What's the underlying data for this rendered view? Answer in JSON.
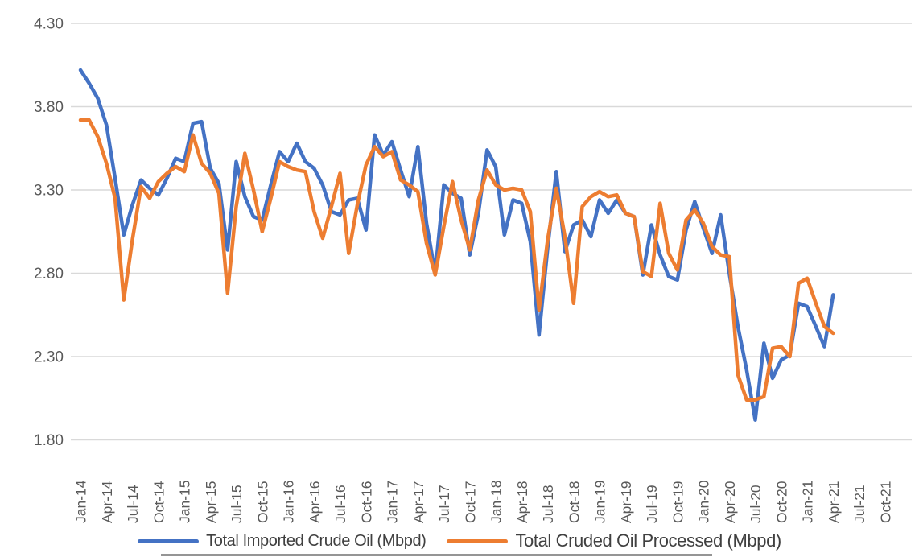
{
  "chart": {
    "y_axis": {
      "labels": [
        "4.30",
        "3.80",
        "3.30",
        "2.80",
        "2.30",
        "1.80"
      ]
    },
    "x_axis": {
      "tick_labels": [
        "Jan-14",
        "Apr-14",
        "Jul-14",
        "Oct-14",
        "Jan-15",
        "Apr-15",
        "Jul-15",
        "Oct-15",
        "Jan-16",
        "Apr-16",
        "Jul-16",
        "Oct-16",
        "Jan-17",
        "Apr-17",
        "Jul-17",
        "Oct-17",
        "Jan-18",
        "Apr-18",
        "Jul-18",
        "Oct-18",
        "Jan-19",
        "Apr-19",
        "Jul-19",
        "Oct-19",
        "Jan-20",
        "Apr-20",
        "Jul-20",
        "Oct-20",
        "Jan-21",
        "Apr-21",
        "Jul-21",
        "Oct-21"
      ]
    },
    "legend": [
      {
        "label": "Total Imported Crude Oil (Mbpd)",
        "color": "#4472C4"
      },
      {
        "label": "Total Cruded Oil Processed (Mbpd)",
        "color": "#ED7D31"
      }
    ]
  },
  "chart_data": {
    "type": "line",
    "x_interval": "monthly",
    "x_start": "Jan-14",
    "x_end": "Apr-21",
    "x_axis_span_months": 96,
    "ylim": [
      1.8,
      4.3
    ],
    "y_tick_step": 0.5,
    "grid": "horizontal",
    "legend_position": "bottom",
    "series": [
      {
        "name": "Total Imported Crude Oil (Mbpd)",
        "color": "#4472C4",
        "values": [
          4.02,
          3.94,
          3.85,
          3.69,
          3.37,
          3.03,
          3.21,
          3.36,
          3.31,
          3.27,
          3.37,
          3.49,
          3.47,
          3.7,
          3.71,
          3.43,
          3.34,
          2.94,
          3.47,
          3.26,
          3.14,
          3.12,
          3.33,
          3.53,
          3.47,
          3.58,
          3.47,
          3.43,
          3.33,
          3.17,
          3.15,
          3.24,
          3.25,
          3.06,
          3.63,
          3.51,
          3.59,
          3.42,
          3.26,
          3.56,
          3.1,
          2.8,
          3.33,
          3.28,
          3.25,
          2.91,
          3.16,
          3.54,
          3.44,
          3.03,
          3.24,
          3.22,
          2.99,
          2.43,
          2.95,
          3.41,
          2.93,
          3.09,
          3.12,
          3.02,
          3.24,
          3.16,
          3.24,
          3.16,
          3.14,
          2.79,
          3.09,
          2.91,
          2.78,
          2.76,
          3.06,
          3.23,
          3.07,
          2.92,
          3.15,
          2.8,
          2.48,
          2.22,
          1.92,
          2.38,
          2.17,
          2.28,
          2.31,
          2.62,
          2.6,
          2.48,
          2.36,
          2.67
        ]
      },
      {
        "name": "Total Cruded Oil Processed (Mbpd)",
        "color": "#ED7D31",
        "values": [
          3.72,
          3.72,
          3.62,
          3.46,
          3.25,
          2.64,
          3.0,
          3.32,
          3.25,
          3.35,
          3.4,
          3.44,
          3.41,
          3.63,
          3.46,
          3.4,
          3.28,
          2.68,
          3.2,
          3.52,
          3.3,
          3.05,
          3.25,
          3.47,
          3.44,
          3.42,
          3.41,
          3.17,
          3.01,
          3.2,
          3.4,
          2.92,
          3.21,
          3.45,
          3.56,
          3.5,
          3.53,
          3.36,
          3.33,
          3.29,
          2.98,
          2.79,
          3.08,
          3.35,
          3.12,
          2.94,
          3.24,
          3.42,
          3.33,
          3.3,
          3.31,
          3.3,
          3.17,
          2.58,
          3.0,
          3.31,
          3.02,
          2.62,
          3.2,
          3.26,
          3.29,
          3.26,
          3.27,
          3.16,
          3.14,
          2.81,
          2.78,
          3.22,
          2.92,
          2.82,
          3.12,
          3.18,
          3.1,
          2.96,
          2.91,
          2.9,
          2.19,
          2.04,
          2.04,
          2.06,
          2.35,
          2.36,
          2.3,
          2.74,
          2.77,
          2.62,
          2.48,
          2.44
        ]
      }
    ]
  },
  "colors": {
    "series_imported": "#4472C4",
    "series_processed": "#ED7D31",
    "gridline": "#D9D9D9",
    "axis_text": "#595959",
    "legend_text": "#404040",
    "border_artifact": "#2b2b2b"
  }
}
